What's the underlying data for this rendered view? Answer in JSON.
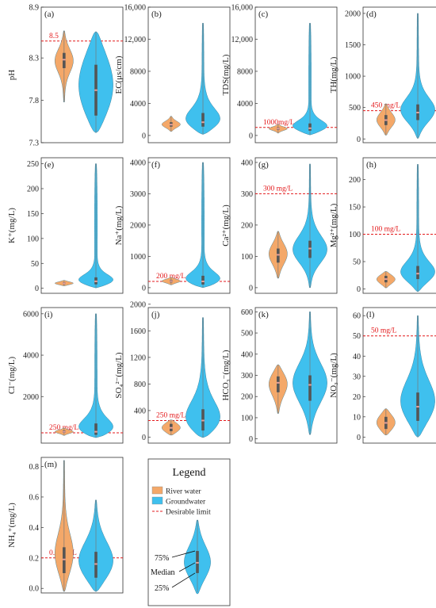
{
  "colors": {
    "river": "#F4A869",
    "ground": "#3FC0EE",
    "limit": "#E31A1C",
    "box": "#555555",
    "median": "#E8A09A",
    "frame": "#333333"
  },
  "chart_data": [
    {
      "id": "a",
      "type": "violin",
      "label": "(a)",
      "ylabel": "pH",
      "ylim": [
        7.3,
        8.9
      ],
      "yticks": [
        "7.3",
        "7.8",
        "8.3",
        "8.9"
      ],
      "limit": 8.5,
      "limit_label": "8.5",
      "river": {
        "min": 7.78,
        "q1": 8.18,
        "median": 8.28,
        "q3": 8.36,
        "max": 8.62,
        "mode": 8.28
      },
      "ground": {
        "min": 7.42,
        "q1": 7.62,
        "median": 7.92,
        "q3": 8.22,
        "max": 8.61,
        "mode": 7.95
      }
    },
    {
      "id": "b",
      "type": "violin",
      "label": "(b)",
      "ylabel": "EC(μs/cm)",
      "ylim": [
        -900,
        16000
      ],
      "yticks": [
        "0",
        "4000",
        "8000",
        "12,000",
        "16,000"
      ],
      "limit": null,
      "limit_label": "",
      "river": {
        "min": 500,
        "q1": 1100,
        "median": 1350,
        "q3": 1650,
        "max": 2400,
        "mode": 1350
      },
      "ground": {
        "min": 150,
        "q1": 1100,
        "median": 1650,
        "q3": 2800,
        "max": 14000,
        "mode": 1500
      }
    },
    {
      "id": "c",
      "type": "violin",
      "label": "(c)",
      "ylabel": "TDS(mg/L)",
      "ylim": [
        -900,
        16000
      ],
      "yticks": [
        "0",
        "4000",
        "8000",
        "12,000",
        "16,000"
      ],
      "limit": 1000,
      "limit_label": "1000mg/L",
      "river": {
        "min": 300,
        "q1": 700,
        "median": 850,
        "q3": 1000,
        "max": 1400,
        "mode": 850
      },
      "ground": {
        "min": 80,
        "q1": 600,
        "median": 900,
        "q3": 1500,
        "max": 14000,
        "mode": 900
      }
    },
    {
      "id": "d",
      "type": "violin",
      "label": "(d)",
      "ylabel": "TH(mg/L)",
      "ylim": [
        -60,
        2100
      ],
      "yticks": [
        "0",
        "500",
        "1000",
        "1500",
        "2000"
      ],
      "limit": 450,
      "limit_label": "450 mg/L",
      "river": {
        "min": 60,
        "q1": 220,
        "median": 300,
        "q3": 380,
        "max": 560,
        "mode": 300
      },
      "ground": {
        "min": 10,
        "q1": 300,
        "median": 420,
        "q3": 550,
        "max": 2000,
        "mode": 420
      }
    },
    {
      "id": "e",
      "type": "violin",
      "label": "(e)",
      "ylabel": "K⁺(mg/L)",
      "ylim": [
        -10,
        262
      ],
      "yticks": [
        "0",
        "50",
        "100",
        "150",
        "200",
        "250"
      ],
      "limit": null,
      "limit_label": "",
      "river": {
        "min": 5,
        "q1": 8,
        "median": 10,
        "q3": 12,
        "max": 16,
        "mode": 10
      },
      "ground": {
        "min": 1,
        "q1": 8,
        "median": 14,
        "q3": 22,
        "max": 250,
        "mode": 12
      }
    },
    {
      "id": "f",
      "type": "violin",
      "label": "(f)",
      "ylabel": "Na⁺(mg/L)",
      "ylim": [
        -180,
        4150
      ],
      "yticks": [
        "0",
        "1000",
        "2000",
        "3000",
        "4000"
      ],
      "limit": 200,
      "limit_label": "200 mg/L",
      "river": {
        "min": 90,
        "q1": 170,
        "median": 210,
        "q3": 250,
        "max": 330,
        "mode": 210
      },
      "ground": {
        "min": 5,
        "q1": 100,
        "median": 200,
        "q3": 380,
        "max": 4000,
        "mode": 180
      }
    },
    {
      "id": "g",
      "type": "violin",
      "label": "(g)",
      "ylabel": "Ca²⁺(mg/L)",
      "ylim": [
        -18,
        415
      ],
      "yticks": [
        "0",
        "100",
        "200",
        "300",
        "400"
      ],
      "limit": 300,
      "limit_label": "300 mg/L",
      "river": {
        "min": 30,
        "q1": 80,
        "median": 105,
        "q3": 125,
        "max": 180,
        "mode": 110
      },
      "ground": {
        "min": 0,
        "q1": 95,
        "median": 125,
        "q3": 150,
        "max": 395,
        "mode": 115
      }
    },
    {
      "id": "h",
      "type": "violin",
      "label": "(h)",
      "ylabel": "Mg²⁺(mg/L)",
      "ylim": [
        -8,
        240
      ],
      "yticks": [
        "0",
        "50",
        "100",
        "150",
        "200"
      ],
      "limit": 100,
      "limit_label": "100 mg/L",
      "river": {
        "min": 2,
        "q1": 12,
        "median": 18,
        "q3": 24,
        "max": 32,
        "mode": 18
      },
      "ground": {
        "min": -5,
        "q1": 18,
        "median": 28,
        "q3": 42,
        "max": 228,
        "mode": 25
      }
    },
    {
      "id": "i",
      "type": "violin",
      "label": "(i)",
      "ylabel": "Cl⁻(mg/L)",
      "ylim": [
        -250,
        6300
      ],
      "yticks": [
        "2000",
        "4000",
        "6000"
      ],
      "limit": 250,
      "limit_label": "250 mg/L",
      "river": {
        "min": 120,
        "q1": 250,
        "median": 300,
        "q3": 360,
        "max": 480,
        "mode": 300
      },
      "ground": {
        "min": 20,
        "q1": 150,
        "median": 300,
        "q3": 700,
        "max": 6000,
        "mode": 300
      }
    },
    {
      "id": "j",
      "type": "violin",
      "label": "(j)",
      "ylabel": "SO₄²⁻(mg/L)",
      "ylim": [
        -90,
        1950
      ],
      "yticks": [
        "0",
        "400",
        "800",
        "1200",
        "1600",
        "2000"
      ],
      "limit": 250,
      "limit_label": "250 mg/L",
      "river": {
        "min": 30,
        "q1": 90,
        "median": 140,
        "q3": 200,
        "max": 260,
        "mode": 140
      },
      "ground": {
        "min": -5,
        "q1": 100,
        "median": 250,
        "q3": 420,
        "max": 1800,
        "mode": 180
      }
    },
    {
      "id": "k",
      "type": "violin",
      "label": "(k)",
      "ylabel": "HCO₃⁻(mg/L)",
      "ylim": [
        -20,
        620
      ],
      "yticks": [
        "0",
        "100",
        "200",
        "300",
        "400",
        "500",
        "600"
      ],
      "limit": null,
      "limit_label": "",
      "river": {
        "min": 120,
        "q1": 220,
        "median": 265,
        "q3": 295,
        "max": 350,
        "mode": 270
      },
      "ground": {
        "min": 20,
        "q1": 180,
        "median": 255,
        "q3": 300,
        "max": 600,
        "mode": 260
      }
    },
    {
      "id": "l",
      "type": "violin",
      "label": "(l)",
      "ylabel": "NO₃⁻(mg/L)",
      "ylim": [
        -3,
        64
      ],
      "yticks": [
        "0",
        "10",
        "20",
        "30",
        "40",
        "50",
        "60"
      ],
      "limit": 50,
      "limit_label": "50 mg/L",
      "river": {
        "min": 1,
        "q1": 4,
        "median": 7,
        "q3": 10,
        "max": 14,
        "mode": 7
      },
      "ground": {
        "min": 0,
        "q1": 8,
        "median": 15,
        "q3": 22,
        "max": 60,
        "mode": 15
      }
    },
    {
      "id": "m",
      "type": "violin",
      "label": "(m)",
      "ylabel": "NH₄⁺(mg/L)",
      "ylim": [
        -0.03,
        0.86
      ],
      "yticks": [
        "0.0",
        "0.2",
        "0.4",
        "0.6",
        "0.8"
      ],
      "limit": 0.2,
      "limit_label": "0.2 mg/L",
      "river": {
        "min": -0.02,
        "q1": 0.1,
        "median": 0.19,
        "q3": 0.27,
        "max": 0.84,
        "mode": 0.2
      },
      "ground": {
        "min": -0.02,
        "q1": 0.07,
        "median": 0.16,
        "q3": 0.24,
        "max": 0.58,
        "mode": 0.15
      }
    }
  ],
  "legend": {
    "title": "Legend",
    "items": [
      {
        "label": "River water",
        "kind": "river"
      },
      {
        "label": "Groundwater",
        "kind": "ground"
      },
      {
        "label": "Desirable limit",
        "kind": "limit"
      }
    ],
    "annotations": [
      {
        "label": "75%"
      },
      {
        "label": "Median"
      },
      {
        "label": "25%"
      }
    ]
  }
}
